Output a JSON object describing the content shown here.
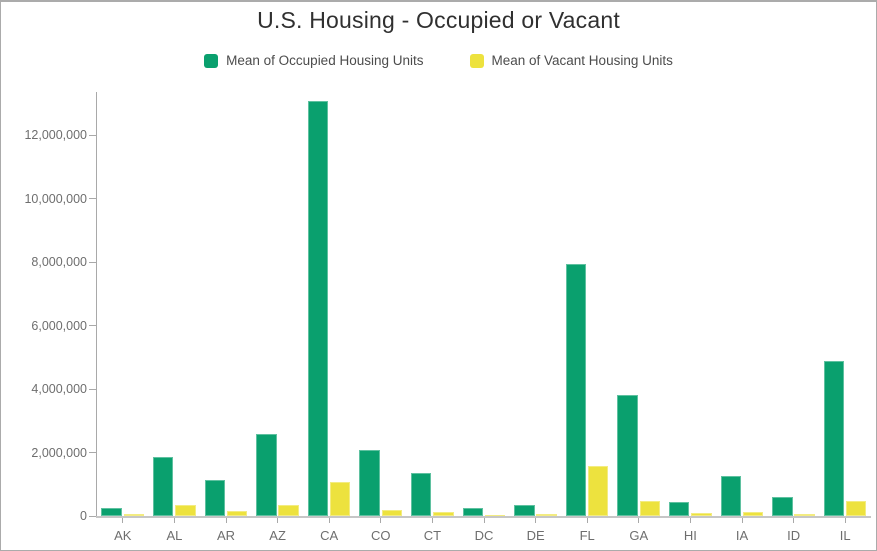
{
  "header": {
    "title": "U.S. Housing - Occupied or Vacant"
  },
  "legend": {
    "items": [
      {
        "label": "Mean of Occupied Housing Units",
        "color": "#0aa06e"
      },
      {
        "label": "Mean of Vacant Housing Units",
        "color": "#ede23e"
      }
    ]
  },
  "chart_data": {
    "type": "bar",
    "title": "U.S. Housing - Occupied or Vacant",
    "categories": [
      "AK",
      "AL",
      "AR",
      "AZ",
      "CA",
      "CO",
      "CT",
      "DC",
      "DE",
      "FL",
      "GA",
      "HI",
      "IA",
      "ID",
      "IL"
    ],
    "series": [
      {
        "name": "Mean of Occupied Housing Units",
        "color": "#0aa06e",
        "values": [
          240000,
          1860000,
          1130000,
          2600000,
          13100000,
          2090000,
          1350000,
          250000,
          340000,
          7940000,
          3810000,
          440000,
          1250000,
          600000,
          4880000
        ]
      },
      {
        "name": "Mean of Vacant Housing Units",
        "color": "#ede23e",
        "values": [
          50000,
          350000,
          170000,
          360000,
          1070000,
          190000,
          120000,
          30000,
          70000,
          1590000,
          460000,
          80000,
          140000,
          70000,
          460000
        ]
      }
    ],
    "xlabel": "",
    "ylabel": "",
    "ylim": [
      0,
      13370000
    ],
    "yticks": {
      "values": [
        0,
        2000000,
        4000000,
        6000000,
        8000000,
        10000000,
        12000000
      ],
      "labels": [
        "0",
        "2,000,000",
        "4,000,000",
        "6,000,000",
        "8,000,000",
        "10,000,000",
        "12,000,000"
      ]
    },
    "grid": false,
    "legend_position": "top"
  }
}
